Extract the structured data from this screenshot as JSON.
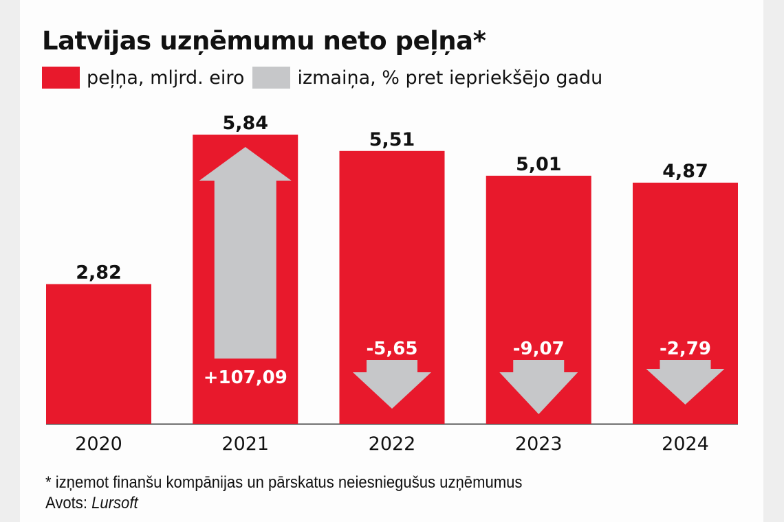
{
  "title": "Latvijas uzņēmumu neto peļņa*",
  "legend": [
    {
      "label": "peļņa, mljrd. eiro",
      "color": "#e8192c"
    },
    {
      "label": "izmaiņa, % pret iepriekšējo gadu",
      "color": "#c6c7c9"
    }
  ],
  "footnote": "* izņemot finanšu kompānijas un pārskatus neiesniegušus uzņēmumus",
  "source_label": "Avots:",
  "source_name": "Lursoft",
  "chart_data": {
    "type": "bar",
    "title": "Latvijas uzņēmumu neto peļņa*",
    "xlabel": "",
    "ylabel": "",
    "categories": [
      "2020",
      "2021",
      "2022",
      "2023",
      "2024"
    ],
    "series": [
      {
        "name": "peļņa, mljrd. eiro",
        "color": "#e8192c",
        "values": [
          2.82,
          5.84,
          5.51,
          5.01,
          4.87
        ],
        "labels": [
          "2,82",
          "5,84",
          "5,51",
          "5,01",
          "4,87"
        ]
      },
      {
        "name": "izmaiņa, % pret iepriekšējo gadu",
        "color": "#c6c7c9",
        "values": [
          null,
          107.09,
          -5.65,
          -9.07,
          -2.79
        ],
        "labels": [
          null,
          "+107,09",
          "-5,65",
          "-9,07",
          "-2,79"
        ]
      }
    ],
    "ylim": [
      0,
      5.84
    ],
    "grid": false,
    "legend_position": "top-left"
  }
}
